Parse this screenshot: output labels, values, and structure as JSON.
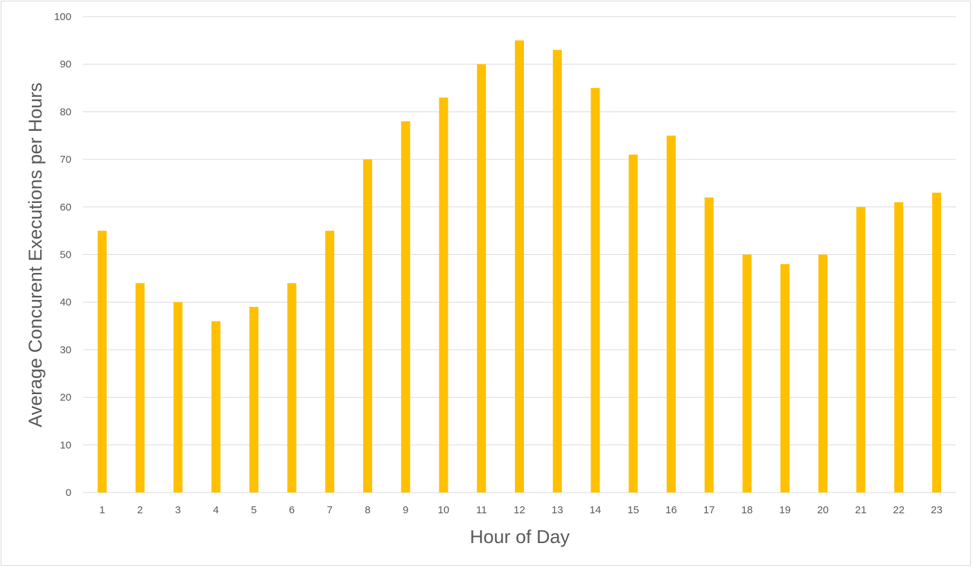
{
  "chart_data": {
    "type": "bar",
    "title": "",
    "xlabel": "Hour of Day",
    "ylabel": "Average Concurent Executions per Hours",
    "categories": [
      "1",
      "2",
      "3",
      "4",
      "5",
      "6",
      "7",
      "8",
      "9",
      "10",
      "11",
      "12",
      "13",
      "14",
      "15",
      "16",
      "17",
      "18",
      "19",
      "20",
      "21",
      "22",
      "23"
    ],
    "values": [
      55,
      44,
      40,
      36,
      39,
      44,
      55,
      70,
      78,
      83,
      90,
      95,
      93,
      85,
      71,
      75,
      62,
      50,
      48,
      50,
      60,
      61,
      63
    ],
    "ylim": [
      0,
      100
    ],
    "yticks": [
      0,
      10,
      20,
      30,
      40,
      50,
      60,
      70,
      80,
      90,
      100
    ],
    "grid": true,
    "legend": "none",
    "bar_color": "#FFC000",
    "grid_color": "#d9d9d9",
    "text_color": "#595959"
  }
}
